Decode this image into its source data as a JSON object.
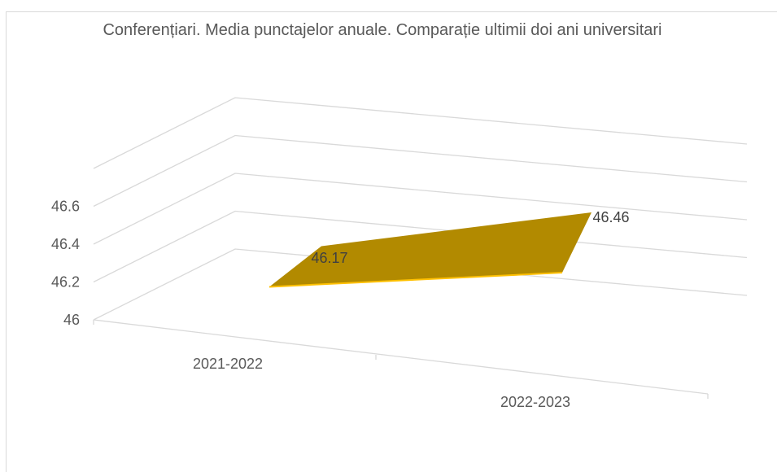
{
  "chart_data": {
    "type": "line",
    "title": "Conferențiari. Media punctajelor anuale. Comparație ultimii doi ani universitari",
    "categories": [
      "2021-2022",
      "2022-2023"
    ],
    "series": [
      {
        "values": [
          46.17,
          46.46
        ]
      }
    ],
    "data_labels": [
      "46.17",
      "46.46"
    ],
    "yticks": [
      "46",
      "46.2",
      "46.4",
      "46.6"
    ],
    "ylim": [
      46,
      46.6
    ],
    "grid": true,
    "style": "3d-ribbon",
    "series_color": "#b28a00",
    "series_edge_color": "#ffc000"
  }
}
